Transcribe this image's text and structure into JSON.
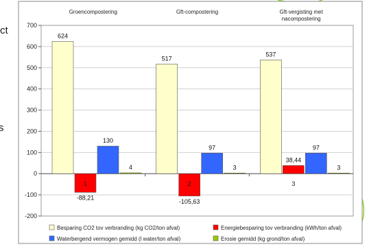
{
  "edge_fragments": {
    "top": "ct",
    "middle": "s"
  },
  "chart_data": {
    "type": "bar",
    "categories": [
      "1",
      "2",
      "3"
    ],
    "group_titles": [
      [
        "Groencompostering"
      ],
      [
        "Gft-compostering"
      ],
      [
        "Gft-vergisting met",
        "nacompostering"
      ]
    ],
    "series": [
      {
        "name": "Besparing CO2  tov verbranding (kg CO2/ton afval)",
        "color": "#FFFFCC",
        "values": [
          624,
          517,
          537
        ],
        "labels": [
          "624",
          "517",
          "537"
        ]
      },
      {
        "name": "Energiebesparing tov verbranding (kWh/ton afval)",
        "color": "#FF0000",
        "values": [
          -88.21,
          -105.63,
          38.44
        ],
        "labels": [
          "-88,21",
          "-105,63",
          "38,44"
        ]
      },
      {
        "name": "Waterbergend vermogen gemidd (l water/ton afval)",
        "color": "#3366FF",
        "values": [
          130,
          97,
          97
        ],
        "labels": [
          "130",
          "97",
          "97"
        ]
      },
      {
        "name": "Erosie gemidd (kg grond/ton afval)",
        "color": "#99CC00",
        "values": [
          4,
          3,
          3
        ],
        "labels": [
          "4",
          "3",
          "3"
        ]
      }
    ],
    "ylim": [
      -200,
      700
    ],
    "yticks": [
      -200,
      -100,
      0,
      100,
      200,
      300,
      400,
      500,
      600,
      700
    ],
    "grid": "horizontal",
    "legend_position": "bottom",
    "title": "",
    "xlabel": "",
    "ylabel": ""
  }
}
